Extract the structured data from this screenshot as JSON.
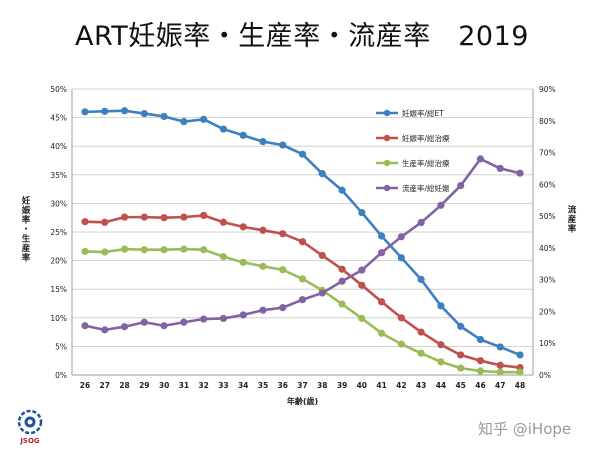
{
  "title": "ART妊娠率・生産率・流産率　2019",
  "logo_text": "JSOG",
  "watermark": "知乎 @iHope",
  "chart_data": {
    "type": "line",
    "xlabel": "年齢(歳)",
    "ylabel_left": "妊娠率・生産率",
    "ylabel_right": "流産率",
    "x": [
      26,
      27,
      28,
      29,
      30,
      31,
      32,
      33,
      34,
      35,
      36,
      37,
      38,
      39,
      40,
      41,
      42,
      43,
      44,
      45,
      46,
      47,
      48
    ],
    "y_left_ticks": [
      "0%",
      "5%",
      "10%",
      "15%",
      "20%",
      "25%",
      "30%",
      "35%",
      "40%",
      "45%",
      "50%"
    ],
    "y_right_ticks": [
      "0%",
      "10%",
      "20%",
      "30%",
      "40%",
      "50%",
      "60%",
      "70%",
      "80%",
      "90%"
    ],
    "ylim_left": [
      0,
      50
    ],
    "ylim_right": [
      0,
      90
    ],
    "grid": true,
    "legend_position": "top-right",
    "series": [
      {
        "name": "妊娠率/総ET",
        "axis": "left",
        "color": "#3d7fbf",
        "values": [
          46.0,
          46.1,
          46.2,
          45.7,
          45.2,
          44.3,
          44.7,
          43.0,
          41.9,
          40.8,
          40.2,
          38.6,
          35.2,
          32.3,
          28.4,
          24.3,
          20.5,
          16.7,
          12.1,
          8.5,
          6.2,
          4.9,
          3.5
        ]
      },
      {
        "name": "妊娠率/総治療",
        "axis": "left",
        "color": "#c0504d",
        "values": [
          26.8,
          26.7,
          27.6,
          27.6,
          27.5,
          27.6,
          27.9,
          26.7,
          25.9,
          25.3,
          24.7,
          23.3,
          20.9,
          18.5,
          15.7,
          12.8,
          10.0,
          7.5,
          5.3,
          3.5,
          2.5,
          1.7,
          1.3
        ]
      },
      {
        "name": "生産率/総治療",
        "axis": "left",
        "color": "#9bbb59",
        "values": [
          21.6,
          21.5,
          22.0,
          21.9,
          21.9,
          22.0,
          21.9,
          20.7,
          19.7,
          19.0,
          18.4,
          16.8,
          14.8,
          12.4,
          9.9,
          7.3,
          5.4,
          3.8,
          2.3,
          1.2,
          0.7,
          0.5,
          0.5
        ]
      },
      {
        "name": "流産率/総妊娠",
        "axis": "right",
        "color": "#8064a2",
        "values": [
          15.5,
          14.2,
          15.2,
          16.6,
          15.5,
          16.6,
          17.6,
          17.8,
          18.9,
          20.4,
          21.2,
          23.7,
          25.8,
          29.5,
          33.0,
          38.5,
          43.5,
          48.0,
          53.4,
          59.6,
          68.0,
          65.0,
          63.5
        ]
      }
    ]
  }
}
